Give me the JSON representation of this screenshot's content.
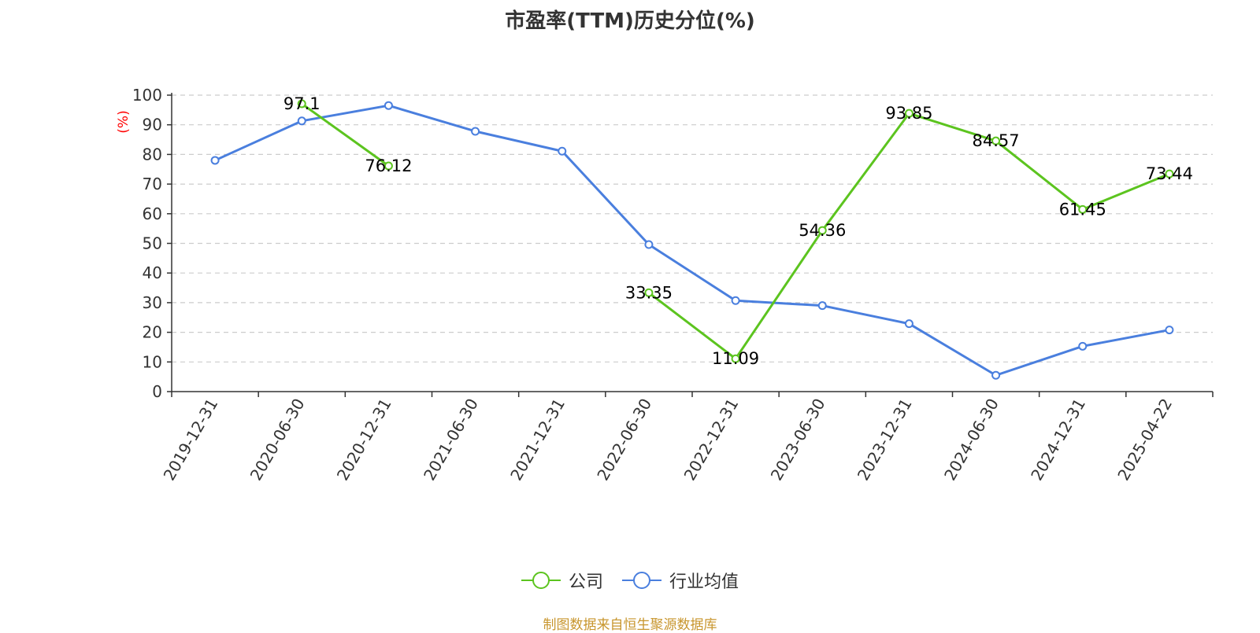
{
  "chart_data": {
    "type": "line",
    "title": "市盈率(TTM)历史分位(%)",
    "ylabel": "(%)",
    "ylim": [
      0,
      100
    ],
    "yticks": [
      0,
      10,
      20,
      30,
      40,
      50,
      60,
      70,
      80,
      90,
      100
    ],
    "grid": true,
    "legend_position": "bottom",
    "categories": [
      "2019-12-31",
      "2020-06-30",
      "2020-12-31",
      "2021-06-30",
      "2021-12-31",
      "2022-06-30",
      "2022-12-31",
      "2023-06-30",
      "2023-12-31",
      "2024-06-30",
      "2024-12-31",
      "2025-04-22"
    ],
    "series": [
      {
        "name": "公司",
        "color": "#5cc41f",
        "values": [
          null,
          97.1,
          76.12,
          null,
          null,
          33.35,
          11.09,
          54.36,
          93.85,
          84.57,
          61.45,
          73.44
        ],
        "labels": [
          "",
          "97.1",
          "76.12",
          "",
          "",
          "33.35",
          "11.09",
          "54.36",
          "93.85",
          "84.57",
          "61.45",
          "73.44"
        ]
      },
      {
        "name": "行业均值",
        "color": "#4a7fde",
        "values": [
          78,
          91.3,
          96.5,
          87.8,
          81.1,
          49.6,
          30.7,
          29,
          22.9,
          5.5,
          15.3,
          20.8
        ]
      }
    ]
  },
  "footer": {
    "source": "制图数据来自恒生聚源数据库"
  }
}
